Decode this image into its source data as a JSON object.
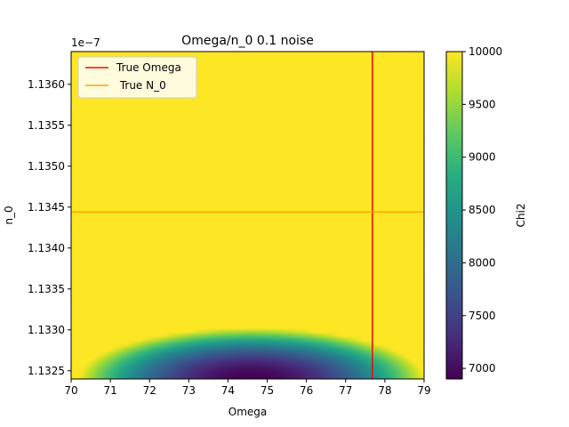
{
  "chart_data": {
    "type": "heatmap",
    "title": "Omega/n_0 0.1 noise",
    "xlabel": "Omega",
    "ylabel": "n_0",
    "y_offset_text": "1e−7",
    "xlim": [
      70,
      79
    ],
    "ylim": [
      1.1324,
      1.1364
    ],
    "y_scale_factor": 1e-07,
    "x_ticks": [
      70,
      71,
      72,
      73,
      74,
      75,
      76,
      77,
      78,
      79
    ],
    "x_tick_labels": [
      "70",
      "71",
      "72",
      "73",
      "74",
      "75",
      "76",
      "77",
      "78",
      "79"
    ],
    "y_ticks": [
      1.1325,
      1.133,
      1.1335,
      1.134,
      1.1345,
      1.135,
      1.1355,
      1.136
    ],
    "y_tick_labels": [
      "1.1325",
      "1.1330",
      "1.1335",
      "1.1340",
      "1.1345",
      "1.1350",
      "1.1355",
      "1.1360"
    ],
    "colormap": "viridis",
    "colorbar": {
      "label": "Chi2",
      "vmin": 6900,
      "vmax": 10000,
      "ticks": [
        7000,
        7500,
        8000,
        8500,
        9000,
        9500,
        10000
      ],
      "tick_labels": [
        "7000",
        "7500",
        "8000",
        "8500",
        "9000",
        "9500",
        "10000"
      ]
    },
    "chi2_surface": {
      "clip_max": 10000,
      "min_value": 6900,
      "min_location": {
        "omega": 74.6,
        "n_0": 1.1324
      },
      "omega_half_width_at_clip": 4.4,
      "n_0_extent_at_clip": 0.00062
    },
    "reference_lines": [
      {
        "orientation": "vertical",
        "name": "True Omega",
        "value": 77.68,
        "color": "#ff0000"
      },
      {
        "orientation": "horizontal",
        "name": " True N_0",
        "value": 1.13444,
        "color": "#ffa500"
      }
    ],
    "legend": {
      "position": "upper-left",
      "entries": [
        {
          "label": "True Omega",
          "color": "#ff0000"
        },
        {
          "label": " True N_0",
          "color": "#ffa500"
        }
      ]
    },
    "grid": false
  }
}
